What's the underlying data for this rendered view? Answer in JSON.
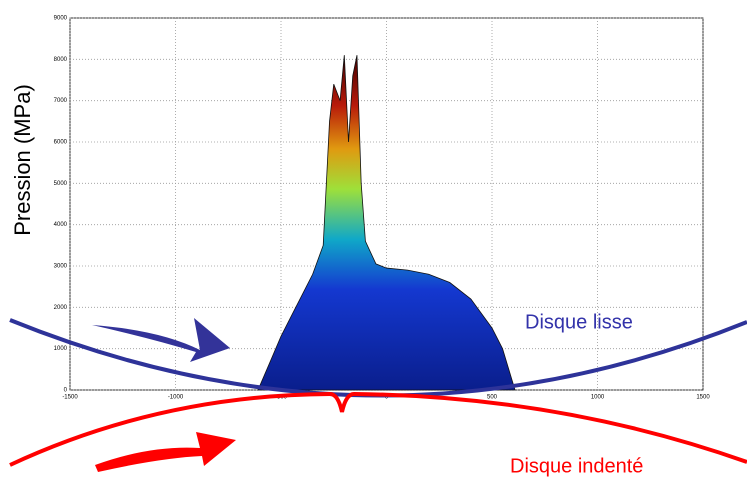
{
  "chart_data": {
    "type": "area",
    "y_label": "Pression (MPa)",
    "x": [
      -609,
      -550,
      -500,
      -450,
      -400,
      -350,
      -300,
      -270,
      -250,
      -220,
      -200,
      -180,
      -160,
      -140,
      -120,
      -100,
      -50,
      0,
      100,
      200,
      300,
      400,
      500,
      550,
      609
    ],
    "series": [
      {
        "values": [
          0,
          700,
          1300,
          1800,
          2300,
          2800,
          3500,
          6500,
          7400,
          7000,
          8100,
          6000,
          7600,
          8100,
          5000,
          3600,
          3050,
          2950,
          2900,
          2800,
          2600,
          2200,
          1500,
          1000,
          0
        ]
      }
    ],
    "xlim": [
      -1500,
      1500
    ],
    "xticks": [
      -1500,
      -1000,
      -500,
      0,
      500,
      1000,
      1500
    ],
    "ylim": [
      0,
      9000
    ],
    "yticks": [
      0,
      1000,
      2000,
      3000,
      4000,
      5000,
      6000,
      7000,
      8000,
      9000
    ],
    "grid": true,
    "annotations": [
      "Disque lisse",
      "Disque indenté"
    ]
  }
}
